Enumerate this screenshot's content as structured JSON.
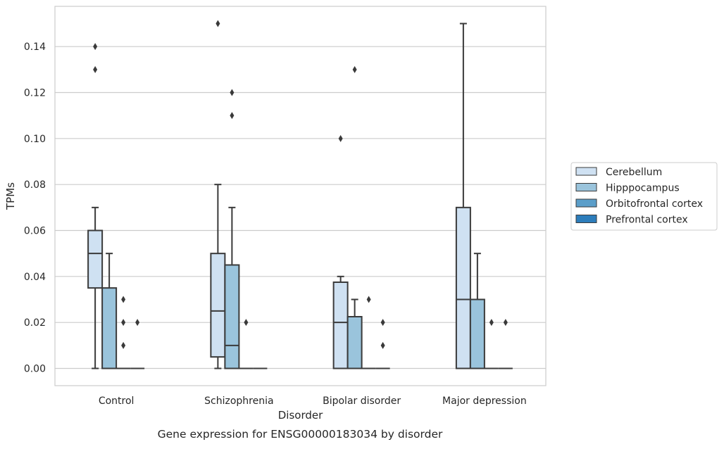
{
  "chart_data": {
    "type": "box",
    "title": "Gene expression for ENSG00000183034 by disorder",
    "xlabel": "Disorder",
    "ylabel": "TPMs",
    "ylim": [
      -0.0075,
      0.1575
    ],
    "yticks": [
      "0.00",
      "0.02",
      "0.04",
      "0.06",
      "0.08",
      "0.10",
      "0.12",
      "0.14"
    ],
    "grid": "horizontal",
    "legend_position": "right",
    "categories": [
      "Control",
      "Schizophrenia",
      "Bipolar disorder",
      "Major depression"
    ],
    "series": [
      {
        "name": "Cerebellum",
        "color": "#cfe1f2",
        "boxes": [
          {
            "min": 0.0,
            "q1": 0.035,
            "median": 0.05,
            "q3": 0.06,
            "max": 0.07,
            "outliers": [
              0.13,
              0.14
            ]
          },
          {
            "min": 0.0,
            "q1": 0.005,
            "median": 0.025,
            "q3": 0.05,
            "max": 0.08,
            "outliers": [
              0.15
            ]
          },
          {
            "min": 0.0,
            "q1": 0.0,
            "median": 0.02,
            "q3": 0.0375,
            "max": 0.04,
            "outliers": [
              0.1
            ]
          },
          {
            "min": 0.0,
            "q1": 0.0,
            "median": 0.03,
            "q3": 0.07,
            "max": 0.15,
            "outliers": []
          }
        ]
      },
      {
        "name": "Hipppocampus",
        "color": "#9ac4dc",
        "boxes": [
          {
            "min": 0.0,
            "q1": 0.0,
            "median": 0.0,
            "q3": 0.035,
            "max": 0.05,
            "outliers": []
          },
          {
            "min": 0.0,
            "q1": 0.0,
            "median": 0.01,
            "q3": 0.045,
            "max": 0.07,
            "outliers": [
              0.12,
              0.11
            ]
          },
          {
            "min": 0.0,
            "q1": 0.0,
            "median": 0.0,
            "q3": 0.0225,
            "max": 0.03,
            "outliers": [
              0.13
            ]
          },
          {
            "min": 0.0,
            "q1": 0.0,
            "median": 0.0,
            "q3": 0.03,
            "max": 0.05,
            "outliers": []
          }
        ]
      },
      {
        "name": "Orbitofrontal cortex",
        "color": "#5b9ec9",
        "boxes": [
          {
            "min": 0.0,
            "q1": 0.0,
            "median": 0.0,
            "q3": 0.0,
            "max": 0.0,
            "outliers": [
              0.03,
              0.02,
              0.01
            ]
          },
          {
            "min": 0.0,
            "q1": 0.0,
            "median": 0.0,
            "q3": 0.0,
            "max": 0.0,
            "outliers": [
              0.02
            ]
          },
          {
            "min": 0.0,
            "q1": 0.0,
            "median": 0.0,
            "q3": 0.0,
            "max": 0.0,
            "outliers": [
              0.03
            ]
          },
          {
            "min": 0.0,
            "q1": 0.0,
            "median": 0.0,
            "q3": 0.0,
            "max": 0.0,
            "outliers": [
              0.02
            ]
          }
        ]
      },
      {
        "name": "Prefrontal cortex",
        "color": "#2d7dbb",
        "boxes": [
          {
            "min": 0.0,
            "q1": 0.0,
            "median": 0.0,
            "q3": 0.0,
            "max": 0.0,
            "outliers": [
              0.02
            ]
          },
          {
            "min": 0.0,
            "q1": 0.0,
            "median": 0.0,
            "q3": 0.0,
            "max": 0.0,
            "outliers": []
          },
          {
            "min": 0.0,
            "q1": 0.0,
            "median": 0.0,
            "q3": 0.0,
            "max": 0.0,
            "outliers": [
              0.02,
              0.01
            ]
          },
          {
            "min": 0.0,
            "q1": 0.0,
            "median": 0.0,
            "q3": 0.0,
            "max": 0.0,
            "outliers": [
              0.02
            ]
          }
        ]
      }
    ]
  }
}
